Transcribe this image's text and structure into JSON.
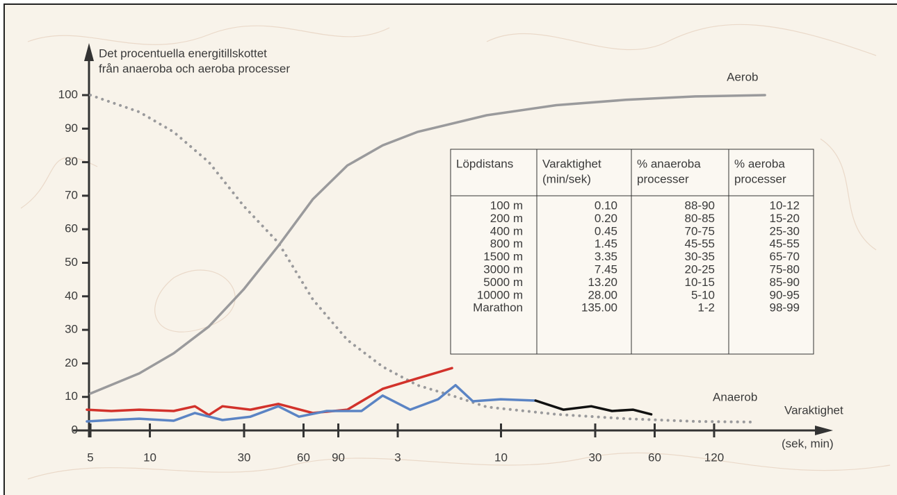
{
  "chart_data": {
    "type": "line",
    "ylabel": [
      "Det procentuella energitillskottet",
      "från anaeroba och aeroba processer"
    ],
    "xlabel": [
      "Varaktighet",
      "(sek, min)"
    ],
    "log_x": true,
    "xlim": [
      4.25,
      27000
    ],
    "xticks": [
      5,
      10,
      30,
      60,
      90,
      {
        "value": 180,
        "label": "3"
      },
      {
        "value": 600,
        "label": "10"
      },
      {
        "value": 1800,
        "label": "30"
      },
      {
        "value": 3600,
        "label": "60"
      },
      {
        "value": 7200,
        "label": "120"
      }
    ],
    "ylim": [
      0,
      100
    ],
    "yticks": [
      0,
      10,
      20,
      30,
      40,
      50,
      60,
      70,
      80,
      90,
      100
    ],
    "series": [
      {
        "name": "Aerob",
        "color": "#9a9a9c",
        "dash": "solid",
        "x": [
          5.0,
          8.83,
          13.2,
          19.9,
          29.8,
          44.7,
          67,
          100,
          151,
          226,
          508,
          1143,
          2570,
          5780,
          13030
        ],
        "values": [
          11,
          17,
          23,
          31,
          42,
          55,
          69,
          79,
          85,
          89,
          94,
          97,
          98.6,
          99.6,
          100
        ]
      },
      {
        "name": "Anaerob",
        "color": "#9a9a9c",
        "dash": "dotted",
        "x": [
          5.0,
          8.83,
          13.2,
          19.9,
          29.8,
          44.7,
          67,
          100,
          151,
          226,
          339,
          508,
          1143,
          2570,
          5780,
          11070
        ],
        "values": [
          100,
          95,
          89,
          80,
          67,
          56,
          39,
          27,
          19,
          13.5,
          10.4,
          7,
          4.8,
          3.5,
          2.7,
          2.5
        ]
      },
      {
        "color": "#d2322b",
        "dash": "solid",
        "x": [
          4.8,
          6.38,
          8.83,
          13.2,
          16.9,
          19.9,
          23.3,
          32.3,
          44.7,
          67,
          100,
          151,
          226,
          339
        ],
        "values": [
          6.2,
          5.8,
          6.2,
          5.8,
          7.2,
          4.6,
          7.2,
          6.2,
          7.9,
          5.2,
          6.2,
          12.4,
          15.5,
          18.6
        ]
      },
      {
        "color": "#5b84c4",
        "dash": "solid",
        "x": [
          4.8,
          6.38,
          8.83,
          13.2,
          16.9,
          23.3,
          32.3,
          44.7,
          56.9,
          78.7,
          118,
          151,
          208,
          288,
          353,
          432,
          598,
          898
        ],
        "values": [
          2.7,
          3.1,
          3.5,
          2.9,
          5.2,
          3.1,
          4.1,
          7.2,
          4.1,
          5.8,
          5.8,
          10.4,
          6.2,
          9.3,
          13.5,
          8.7,
          9.3,
          8.9
        ]
      },
      {
        "color": "#111111",
        "dash": "solid",
        "x": [
          898,
          1242,
          1718,
          2188,
          2793,
          3460
        ],
        "values": [
          8.9,
          6.2,
          7.2,
          5.8,
          6.2,
          4.8
        ]
      }
    ],
    "table": {
      "header": [
        [
          "Löpdistans"
        ],
        [
          "Varaktighet",
          "(min/sek)"
        ],
        [
          "% anaeroba",
          "processer"
        ],
        [
          "% aeroba",
          "processer"
        ]
      ],
      "rows": [
        [
          "100 m",
          "0.10",
          "88-90",
          "10-12"
        ],
        [
          "200 m",
          "0.20",
          "80-85",
          "15-20"
        ],
        [
          "400 m",
          "0.45",
          "70-75",
          "25-30"
        ],
        [
          "800 m",
          "1.45",
          "45-55",
          "45-55"
        ],
        [
          "1500 m",
          "3.35",
          "30-35",
          "65-70"
        ],
        [
          "3000 m",
          "7.45",
          "20-25",
          "75-80"
        ],
        [
          "5000 m",
          "13.20",
          "10-15",
          "85-90"
        ],
        [
          "10000 m",
          "28.00",
          "5-10",
          "90-95"
        ],
        [
          "Marathon",
          "135.00",
          "1-2",
          "98-99"
        ]
      ]
    }
  }
}
